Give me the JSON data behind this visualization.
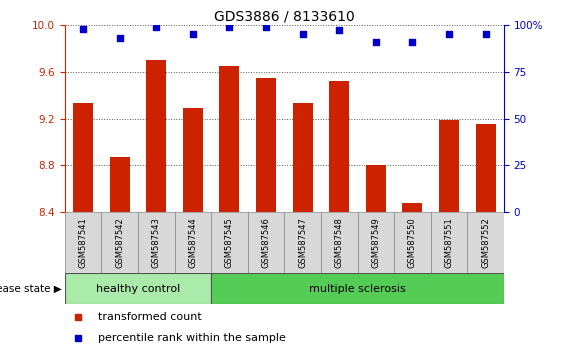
{
  "title": "GDS3886 / 8133610",
  "samples": [
    "GSM587541",
    "GSM587542",
    "GSM587543",
    "GSM587544",
    "GSM587545",
    "GSM587546",
    "GSM587547",
    "GSM587548",
    "GSM587549",
    "GSM587550",
    "GSM587551",
    "GSM587552"
  ],
  "bar_values": [
    9.33,
    8.87,
    9.7,
    9.29,
    9.65,
    9.55,
    9.33,
    9.52,
    8.8,
    8.48,
    9.19,
    9.15
  ],
  "dot_values": [
    98.0,
    93.0,
    99.0,
    95.0,
    99.0,
    99.0,
    95.0,
    97.0,
    91.0,
    91.0,
    95.0,
    95.0
  ],
  "ylim_left": [
    8.4,
    10.0
  ],
  "ylim_right": [
    0,
    100
  ],
  "yticks_left": [
    8.4,
    8.8,
    9.2,
    9.6,
    10.0
  ],
  "yticks_right": [
    0,
    25,
    50,
    75,
    100
  ],
  "bar_color": "#cc2200",
  "dot_color": "#0000cc",
  "bar_bottom": 8.4,
  "healthy_count": 4,
  "label_healthy": "healthy control",
  "label_ms": "multiple sclerosis",
  "disease_label": "disease state",
  "legend_bar": "  transformed count",
  "legend_dot": "  percentile rank within the sample",
  "healthy_color": "#aaeaaa",
  "ms_color": "#55cc55",
  "grid_color": "#555555",
  "title_fontsize": 10,
  "tick_fontsize": 7.5,
  "label_fontsize": 8,
  "legend_fontsize": 8
}
